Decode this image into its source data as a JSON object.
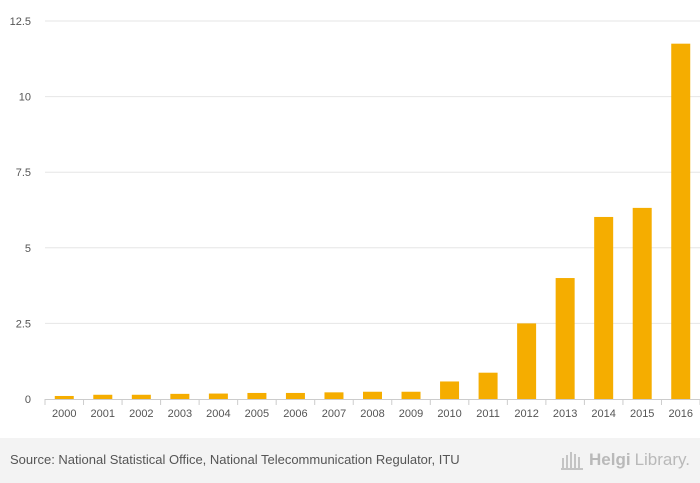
{
  "chart_data": {
    "type": "bar",
    "categories": [
      "2000",
      "2001",
      "2002",
      "2003",
      "2004",
      "2005",
      "2006",
      "2007",
      "2008",
      "2009",
      "2010",
      "2011",
      "2012",
      "2013",
      "2014",
      "2015",
      "2016"
    ],
    "values": [
      0.1,
      0.14,
      0.14,
      0.17,
      0.18,
      0.2,
      0.2,
      0.22,
      0.24,
      0.24,
      0.58,
      0.87,
      2.5,
      4.0,
      6.02,
      6.32,
      11.75
    ],
    "yticks": [
      0,
      2.5,
      5,
      7.5,
      10,
      12.5
    ],
    "ytick_labels": [
      "0",
      "2.5",
      "5",
      "7.5",
      "10",
      "12.5"
    ],
    "ylim": [
      0,
      12.5
    ],
    "title": "",
    "xlabel": "",
    "ylabel": "",
    "grid": true,
    "bar_color": "#f5ad00"
  },
  "footer": {
    "source": "Source: National Statistical Office, National Telecommunication Regulator, ITU",
    "brand_main": "Helgi",
    "brand_lib": "Library."
  }
}
